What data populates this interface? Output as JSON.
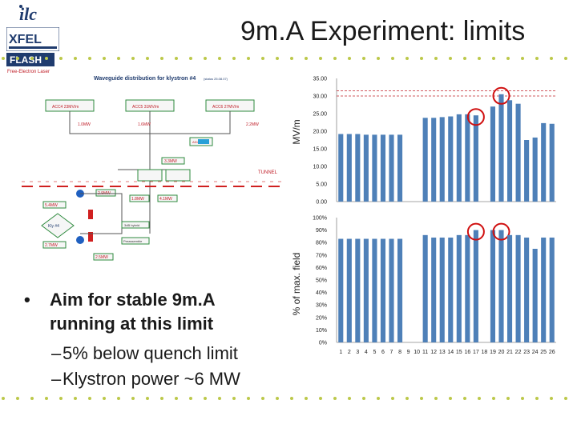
{
  "slide": {
    "title": "9m.A Experiment: limits",
    "bullets": {
      "main": "Aim for stable 9m.A running at this limit",
      "main_line1": "Aim for stable 9m.A",
      "main_line2": "running at this limit",
      "marker": "•",
      "sub": [
        "5% below quench limit",
        "Klystron power ~6 MW"
      ],
      "sub_marker": "–"
    },
    "logos": {
      "ilc": "ilc",
      "xfel": "XFEL",
      "flash": "FLASH",
      "flash_sub": "Free-Electron Laser"
    },
    "schematic": {
      "title": "Waveguide distribution for klystron #4",
      "title_note": "(status 25.08.07)",
      "tunnel": "TUNNEL",
      "klystron": "Kly #4",
      "acc_boxes": [
        "ACC4 23MV/m",
        "ACC5 31MV/m",
        "ACC6 27MV/m"
      ],
      "power_labels": [
        "1.0MW",
        "1.6MW",
        "2.2MW",
        "3.3MW",
        "2.9MW",
        "1.8MW",
        "4.1MW",
        "5.4MW",
        "2.7MW",
        "2.5MW"
      ],
      "hybrid": "3dB hybrid",
      "load": "Preassemble",
      "colors": {
        "arrow_red": "#d02020",
        "arrow_blue": "#2060c0",
        "box_green": "#2e8b3e",
        "box_fill": "#f6f6f6"
      }
    }
  },
  "chart_data": [
    {
      "type": "bar",
      "ylabel": "MV/m",
      "ylim": [
        0,
        35
      ],
      "yticks": [
        "0.00",
        "5.00",
        "10.00",
        "15.00",
        "20.00",
        "25.00",
        "30.00",
        "35.00"
      ],
      "categories": [
        "1",
        "2",
        "3",
        "4",
        "5",
        "6",
        "7",
        "8",
        "9",
        "10",
        "11",
        "12",
        "13",
        "14",
        "15",
        "16",
        "17",
        "18",
        "19",
        "20",
        "21",
        "22",
        "23",
        "24",
        "25",
        "26"
      ],
      "values": [
        19.2,
        19.2,
        19.2,
        19.0,
        19.0,
        19.0,
        19.0,
        19.0,
        0,
        0,
        23.8,
        23.8,
        24.0,
        24.2,
        24.8,
        24.8,
        24.5,
        0,
        27.0,
        30.5,
        28.8,
        27.8,
        17.5,
        18.2,
        22.3,
        22.1
      ],
      "reference_lines": [
        30.0,
        31.5
      ],
      "highlighted_categories": [
        "17",
        "20"
      ],
      "bar_color": "#4e80b8",
      "line_color": "#c0202a",
      "circle_color": "#d01010",
      "grid": false
    },
    {
      "type": "bar",
      "ylabel": "% of max. field",
      "ylim": [
        0,
        100
      ],
      "yticks": [
        "0%",
        "10%",
        "20%",
        "30%",
        "40%",
        "50%",
        "60%",
        "70%",
        "80%",
        "90%",
        "100%"
      ],
      "categories": [
        "1",
        "2",
        "3",
        "4",
        "5",
        "6",
        "7",
        "8",
        "9",
        "10",
        "11",
        "12",
        "13",
        "14",
        "15",
        "16",
        "17",
        "18",
        "19",
        "20",
        "21",
        "22",
        "23",
        "24",
        "25",
        "26"
      ],
      "values": [
        83,
        83,
        83,
        83,
        83,
        83,
        83,
        83,
        0,
        0,
        86,
        84,
        84,
        84,
        86,
        86,
        90,
        0,
        90,
        90,
        86,
        86,
        84,
        75,
        84,
        84
      ],
      "highlighted_categories": [
        "17",
        "20"
      ],
      "bar_color": "#4e80b8",
      "circle_color": "#d01010",
      "grid": false
    }
  ],
  "decor": {
    "dot_color": "#bcc84a"
  }
}
